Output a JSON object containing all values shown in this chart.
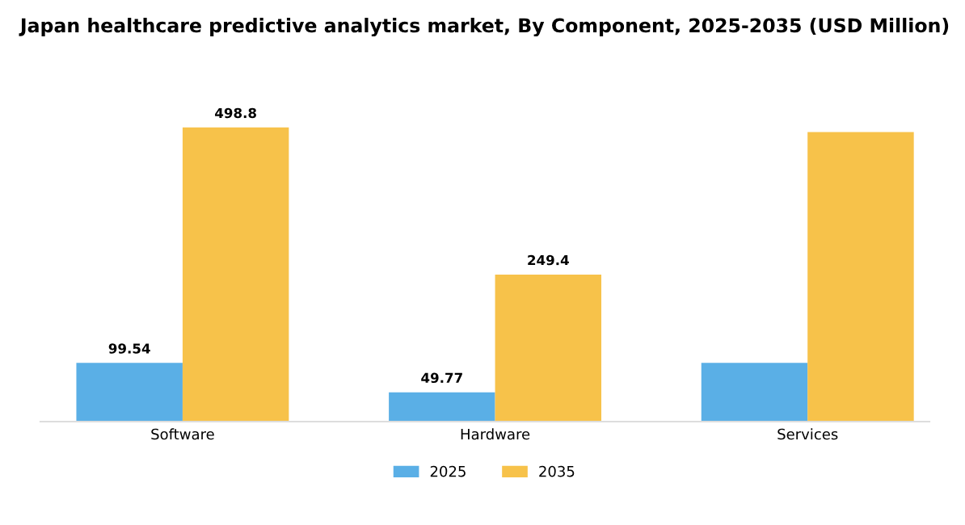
{
  "chart_data": {
    "type": "bar",
    "title": "Japan healthcare predictive analytics market, By Component, 2025-2035 (USD Million)",
    "categories": [
      "Software",
      "Hardware",
      "Services"
    ],
    "series": [
      {
        "name": "2025",
        "color": "#5aafe6",
        "values": [
          99.54,
          49.77,
          99.5
        ],
        "value_labels": [
          "99.54",
          "49.77",
          null
        ]
      },
      {
        "name": "2035",
        "color": "#f7c24a",
        "values": [
          498.8,
          249.4,
          491
        ],
        "value_labels": [
          "498.8",
          "249.4",
          null
        ]
      }
    ],
    "legend": "bottom",
    "grid": false,
    "tick_labels": "x"
  }
}
